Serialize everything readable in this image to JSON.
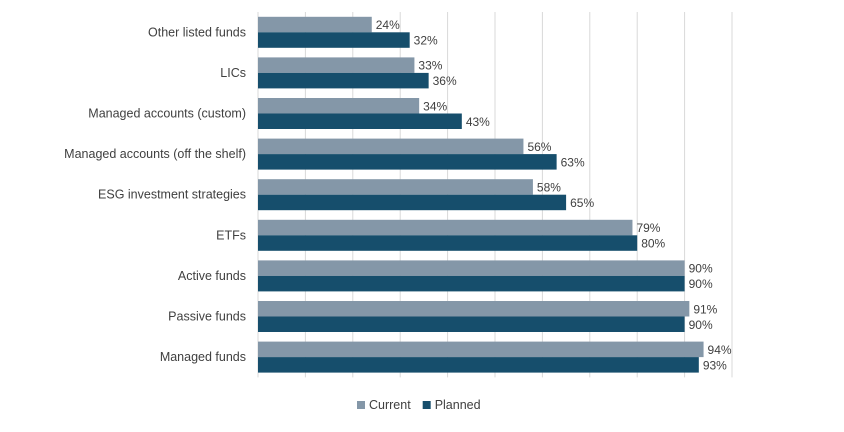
{
  "chart_data": {
    "type": "bar",
    "orientation": "horizontal",
    "categories": [
      "Other listed funds",
      "LICs",
      "Managed accounts (custom)",
      "Managed accounts (off the shelf)",
      "ESG investment strategies",
      "ETFs",
      "Active funds",
      "Passive funds",
      "Managed funds"
    ],
    "series": [
      {
        "name": "Current",
        "color": "#8497a8",
        "values": [
          24,
          33,
          34,
          56,
          58,
          79,
          90,
          91,
          94
        ]
      },
      {
        "name": "Planned",
        "color": "#164e6c",
        "values": [
          32,
          36,
          43,
          63,
          65,
          80,
          90,
          90,
          93
        ]
      }
    ],
    "value_suffix": "%",
    "xlim": [
      0,
      100
    ],
    "grid": true,
    "legend": "bottom"
  }
}
